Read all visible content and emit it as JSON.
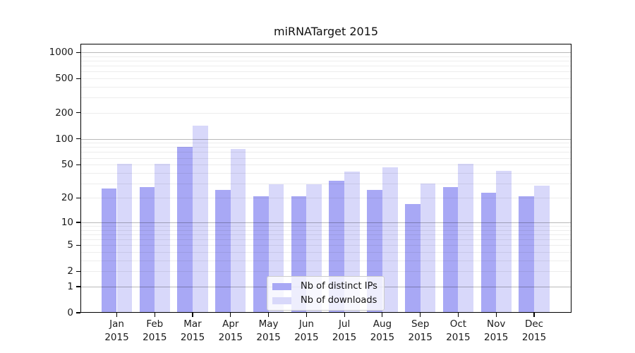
{
  "chart_data": {
    "type": "bar",
    "title": "miRNATarget 2015",
    "categories": [
      "Jan",
      "Feb",
      "Mar",
      "Apr",
      "May",
      "Jun",
      "Jul",
      "Aug",
      "Sep",
      "Oct",
      "Nov",
      "Dec"
    ],
    "year_label": "2015",
    "series": [
      {
        "key": "distinct-ips",
        "name": "Nb of distinct IPs",
        "color": "#a8a8f5",
        "values": [
          26,
          27,
          80,
          25,
          21,
          21,
          32,
          25,
          17,
          27,
          23,
          21
        ]
      },
      {
        "key": "downloads",
        "name": "Nb of downloads",
        "color": "#d8d8fa",
        "values": [
          51,
          51,
          143,
          76,
          29,
          29,
          41,
          46,
          30,
          51,
          42,
          28
        ]
      }
    ],
    "yscale": "log1p",
    "ylim": [
      0,
      1255
    ],
    "yticks": [
      0,
      1,
      2,
      5,
      10,
      20,
      50,
      100,
      200,
      500,
      1000
    ],
    "grid": {
      "major_ticks": [
        1,
        10,
        100,
        1000
      ],
      "minor_per_decade": [
        2,
        3,
        4,
        5,
        6,
        7,
        8,
        9
      ],
      "major_color": "#b8b8b8",
      "minor_color": "#ededed",
      "drawn_over_bars": true
    },
    "legend": {
      "position": "lower center",
      "framed": true
    }
  }
}
